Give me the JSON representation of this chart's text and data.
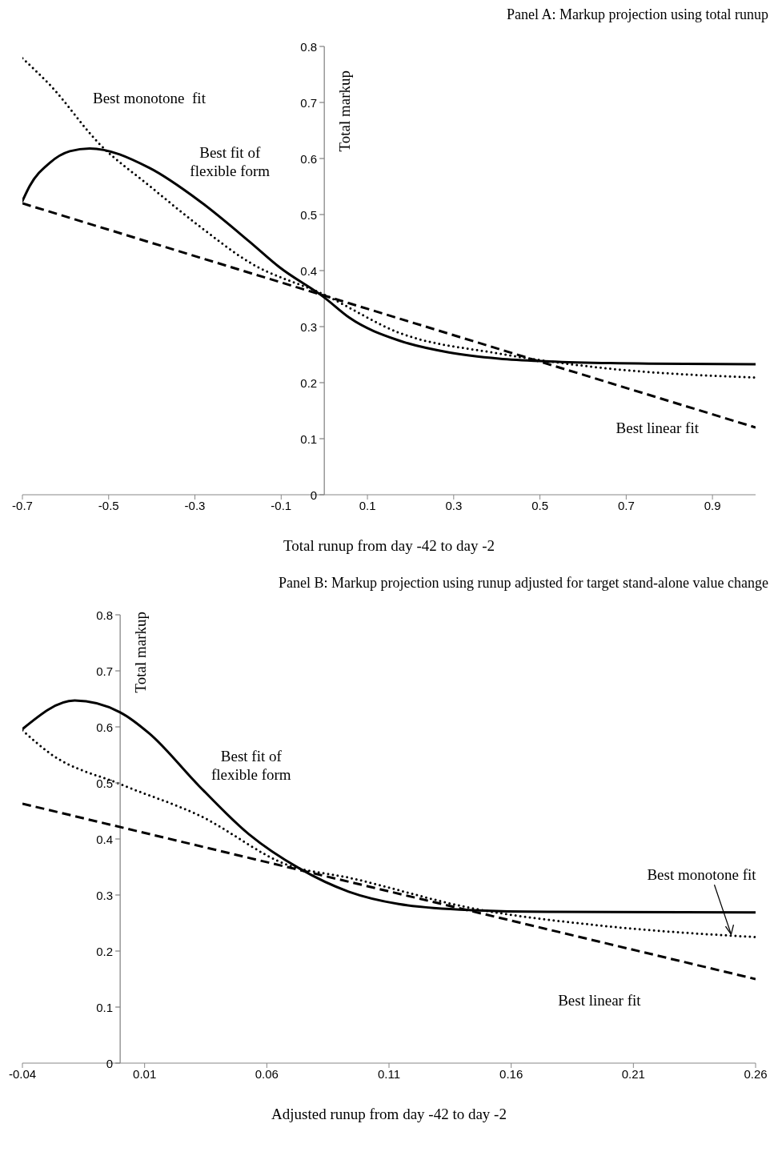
{
  "chart_data": [
    {
      "type": "line",
      "title": "Panel A: Markup projection using total runup",
      "xlabel": "Total runup from day -42 to day -2",
      "ylabel": "Total markup",
      "xlim": [
        -0.7,
        1.0
      ],
      "xticks": [
        -0.7,
        -0.5,
        -0.3,
        -0.1,
        0.1,
        0.3,
        0.5,
        0.7,
        0.9
      ],
      "ylim": [
        0,
        0.8
      ],
      "yticks": [
        0,
        0.1,
        0.2,
        0.3,
        0.4,
        0.5,
        0.6,
        0.7,
        0.8
      ],
      "marker": "none",
      "series": [
        {
          "color": "#000000",
          "line_style": "solid",
          "x": [
            -0.7,
            -0.683,
            -0.637,
            -0.59,
            -0.544,
            -0.405,
            -0.289,
            -0.174,
            -0.104,
            0,
            0.058,
            0.174,
            0.289,
            0.405,
            0.521,
            0.752,
            1.0
          ],
          "values": [
            0.524,
            0.551,
            0.592,
            0.613,
            0.618,
            0.583,
            0.524,
            0.452,
            0.406,
            0.352,
            0.316,
            0.275,
            0.254,
            0.243,
            0.238,
            0.234,
            0.233
          ]
        },
        {
          "color": "#000000",
          "line_style": "dotted",
          "x": [
            -0.7,
            -0.637,
            -0.52,
            -0.405,
            -0.289,
            -0.174,
            0,
            0.174,
            0.405,
            0.637,
            1.0
          ],
          "values": [
            0.779,
            0.732,
            0.625,
            0.551,
            0.479,
            0.415,
            0.357,
            0.289,
            0.252,
            0.227,
            0.209
          ]
        },
        {
          "color": "#000000",
          "line_style": "dashed",
          "x": [
            -0.7,
            1.0
          ],
          "values": [
            0.52,
            0.12
          ]
        }
      ],
      "annotations": [
        "Best monotone  fit",
        "Best fit of\nflexible form",
        "Best linear fit"
      ]
    },
    {
      "type": "line",
      "title": "Panel B: Markup projection using runup adjusted for target stand-alone value change",
      "xlabel": "Adjusted runup from day -42 to day -2",
      "ylabel": "Total markup",
      "xlim": [
        -0.04,
        0.26
      ],
      "xticks": [
        -0.04,
        0.01,
        0.06,
        0.11,
        0.16,
        0.21,
        0.26
      ],
      "ylim": [
        0,
        0.8
      ],
      "yticks": [
        0,
        0.1,
        0.2,
        0.3,
        0.4,
        0.5,
        0.6,
        0.7,
        0.8
      ],
      "marker": "none",
      "series": [
        {
          "color": "#000000",
          "line_style": "solid",
          "x": [
            -0.04,
            -0.0186,
            0.0,
            0.012,
            0.0324,
            0.0528,
            0.0731,
            0.0935,
            0.114,
            0.1445,
            0.175,
            0.26
          ],
          "values": [
            0.596,
            0.647,
            0.626,
            0.588,
            0.494,
            0.408,
            0.348,
            0.306,
            0.284,
            0.273,
            0.27,
            0.269
          ]
        },
        {
          "color": "#000000",
          "line_style": "dotted",
          "x": [
            -0.04,
            -0.0288,
            0.0,
            0.0324,
            0.069,
            0.0935,
            0.1445,
            0.1954,
            0.26
          ],
          "values": [
            0.594,
            0.553,
            0.498,
            0.442,
            0.353,
            0.331,
            0.276,
            0.246,
            0.225
          ]
        },
        {
          "color": "#000000",
          "line_style": "dashed",
          "x": [
            -0.04,
            0.26
          ],
          "values": [
            0.463,
            0.15
          ]
        }
      ],
      "annotations": [
        "Best fit of\nflexible form",
        {
          "text": "Best monotone fit",
          "x": 0.25,
          "y": 0.227
        },
        "Best linear fit"
      ]
    }
  ]
}
